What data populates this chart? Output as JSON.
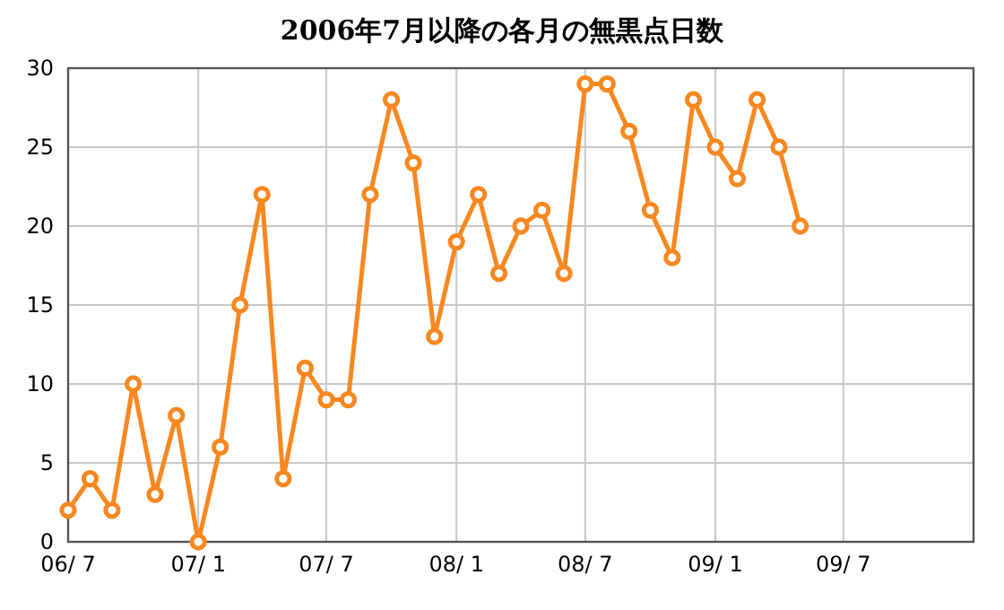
{
  "chart_data": {
    "type": "line",
    "title": "2006年7月以降の各月の無黒点日数",
    "x": [
      "2006-07",
      "2006-08",
      "2006-09",
      "2006-10",
      "2006-11",
      "2006-12",
      "2007-01",
      "2007-02",
      "2007-03",
      "2007-04",
      "2007-05",
      "2007-06",
      "2007-07",
      "2007-08",
      "2007-09",
      "2007-10",
      "2007-11",
      "2007-12",
      "2008-01",
      "2008-02",
      "2008-03",
      "2008-04",
      "2008-05",
      "2008-06",
      "2008-07",
      "2008-08",
      "2008-09",
      "2008-10",
      "2008-11",
      "2008-12",
      "2009-01",
      "2009-02",
      "2009-03",
      "2009-04",
      "2009-05"
    ],
    "series": [
      {
        "color": "#f7871f",
        "values": [
          2,
          4,
          2,
          10,
          3,
          8,
          0,
          6,
          15,
          22,
          4,
          11,
          9,
          9,
          22,
          28,
          24,
          13,
          19,
          22,
          17,
          20,
          21,
          17,
          29,
          29,
          26,
          21,
          18,
          28,
          25,
          23,
          28,
          25,
          20
        ]
      }
    ],
    "xlim": [
      "2006-07",
      "2010-01"
    ],
    "xticks": [
      {
        "value": "2006-07",
        "label": "06/ 7"
      },
      {
        "value": "2007-01",
        "label": "07/ 1"
      },
      {
        "value": "2007-07",
        "label": "07/ 7"
      },
      {
        "value": "2008-01",
        "label": "08/ 1"
      },
      {
        "value": "2008-07",
        "label": "08/ 7"
      },
      {
        "value": "2009-01",
        "label": "09/ 1"
      },
      {
        "value": "2009-07",
        "label": "09/ 7"
      }
    ],
    "ylim": [
      0,
      30
    ],
    "yticks": [
      0,
      5,
      10,
      15,
      20,
      25,
      30
    ],
    "grid": true,
    "marker": "circle",
    "line_style": "solid"
  }
}
